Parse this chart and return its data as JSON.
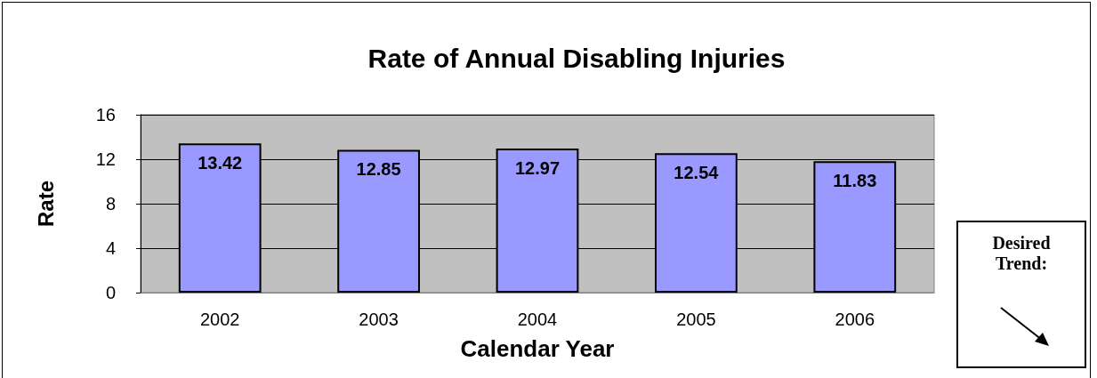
{
  "chart_data": {
    "type": "bar",
    "title": "Rate of Annual Disabling Injuries",
    "xlabel": "Calendar Year",
    "ylabel": "Rate",
    "categories": [
      "2002",
      "2003",
      "2004",
      "2005",
      "2006"
    ],
    "values": [
      13.42,
      12.85,
      12.97,
      12.54,
      11.83
    ],
    "color": "#9999ff",
    "ylim": [
      0,
      16
    ],
    "yticks": [
      0,
      4,
      8,
      12,
      16
    ],
    "grid": "y",
    "data_labels": true,
    "annotations": [
      "Desired Trend:"
    ]
  }
}
